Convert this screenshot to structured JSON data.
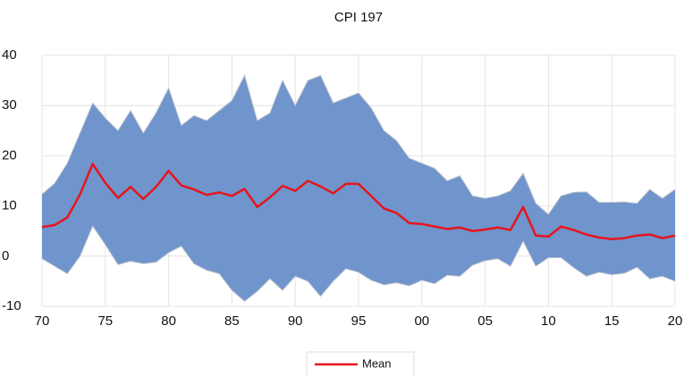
{
  "chart_data": {
    "type": "band-line",
    "title": "CPI 197",
    "x": [
      1970,
      1971,
      1972,
      1973,
      1974,
      1975,
      1976,
      1977,
      1978,
      1979,
      1980,
      1981,
      1982,
      1983,
      1984,
      1985,
      1986,
      1987,
      1988,
      1989,
      1990,
      1991,
      1992,
      1993,
      1994,
      1995,
      1996,
      1997,
      1998,
      1999,
      2000,
      2001,
      2002,
      2003,
      2004,
      2005,
      2006,
      2007,
      2008,
      2009,
      2010,
      2011,
      2012,
      2013,
      2014,
      2015,
      2016,
      2017,
      2018,
      2019,
      2020
    ],
    "band": {
      "color": "#7094cc",
      "upper": [
        12.3,
        14.5,
        18.5,
        24.5,
        30.5,
        27.5,
        25,
        29,
        24.5,
        28.5,
        33.5,
        26,
        28,
        27,
        29,
        31,
        36,
        27,
        28.5,
        35,
        30,
        35,
        36,
        30.5,
        31.5,
        32.5,
        29.5,
        25,
        23,
        19.5,
        18.5,
        17.5,
        15,
        16,
        12,
        11.5,
        12,
        13,
        16.5,
        10.5,
        8.3,
        12,
        12.7,
        12.8,
        10.7,
        10.7,
        10.8,
        10.5,
        13.3,
        11.5,
        13.3
      ],
      "lower": [
        -0.5,
        -2,
        -3.5,
        0,
        6,
        2.3,
        -1.7,
        -1,
        -1.5,
        -1.2,
        0.7,
        2,
        -1.5,
        -2.8,
        -3.5,
        -6.8,
        -9,
        -7,
        -4.5,
        -6.8,
        -4,
        -5,
        -8,
        -5,
        -2.5,
        -3.2,
        -4.8,
        -5.7,
        -5.3,
        -5.9,
        -4.8,
        -5.5,
        -3.8,
        -4,
        -1.8,
        -0.9,
        -0.5,
        -2,
        3,
        -2,
        -0.3,
        -0.3,
        -2.3,
        -4,
        -3.2,
        -3.7,
        -3.4,
        -2.2,
        -4.5,
        -4,
        -5
      ]
    },
    "series": [
      {
        "name": "Mean",
        "color": "#e8141a",
        "values": [
          5.8,
          6.2,
          7.7,
          12.3,
          18.4,
          14.6,
          11.6,
          13.8,
          11.4,
          13.8,
          17,
          14.1,
          13.3,
          12.2,
          12.7,
          12,
          13.4,
          9.8,
          11.7,
          14,
          13,
          15,
          13.9,
          12.5,
          14.4,
          14.4,
          12,
          9.5,
          8.6,
          6.6,
          6.4,
          5.9,
          5.4,
          5.7,
          5,
          5.3,
          5.7,
          5.2,
          9.8,
          4.1,
          3.9,
          5.9,
          5.2,
          4.3,
          3.7,
          3.4,
          3.6,
          4.1,
          4.3,
          3.6,
          4.1
        ]
      }
    ],
    "xlim": [
      1970,
      2020
    ],
    "xticks": [
      {
        "value": 1970,
        "label": "70"
      },
      {
        "value": 1975,
        "label": "75"
      },
      {
        "value": 1980,
        "label": "80"
      },
      {
        "value": 1985,
        "label": "85"
      },
      {
        "value": 1990,
        "label": "90"
      },
      {
        "value": 1995,
        "label": "95"
      },
      {
        "value": 2000,
        "label": "00"
      },
      {
        "value": 2005,
        "label": "05"
      },
      {
        "value": 2010,
        "label": "10"
      },
      {
        "value": 2015,
        "label": "15"
      },
      {
        "value": 2020,
        "label": "20"
      }
    ],
    "ylim": [
      -10,
      40
    ],
    "yticks": [
      -10,
      0,
      10,
      20,
      30,
      40
    ],
    "grid": true,
    "legend": "bottom"
  }
}
